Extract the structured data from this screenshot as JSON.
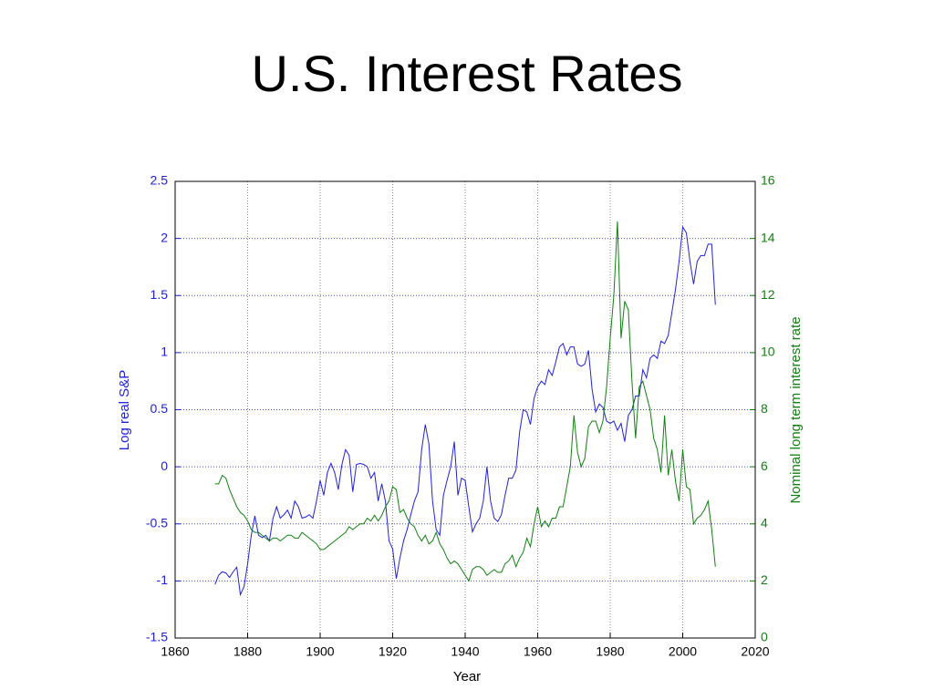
{
  "chart_data": {
    "type": "line",
    "title": "U.S. Interest Rates",
    "xlabel": "Year",
    "ylabel": "Log real S&P",
    "y2label": "Nominal long term interest rate",
    "x": [
      1871,
      1872,
      1873,
      1874,
      1875,
      1876,
      1877,
      1878,
      1879,
      1880,
      1881,
      1882,
      1883,
      1884,
      1885,
      1886,
      1887,
      1888,
      1889,
      1890,
      1891,
      1892,
      1893,
      1894,
      1895,
      1896,
      1897,
      1898,
      1899,
      1900,
      1901,
      1902,
      1903,
      1904,
      1905,
      1906,
      1907,
      1908,
      1909,
      1910,
      1911,
      1912,
      1913,
      1914,
      1915,
      1916,
      1917,
      1918,
      1919,
      1920,
      1921,
      1922,
      1923,
      1924,
      1925,
      1926,
      1927,
      1928,
      1929,
      1930,
      1931,
      1932,
      1933,
      1934,
      1935,
      1936,
      1937,
      1938,
      1939,
      1940,
      1941,
      1942,
      1943,
      1944,
      1945,
      1946,
      1947,
      1948,
      1949,
      1950,
      1951,
      1952,
      1953,
      1954,
      1955,
      1956,
      1957,
      1958,
      1959,
      1960,
      1961,
      1962,
      1963,
      1964,
      1965,
      1966,
      1967,
      1968,
      1969,
      1970,
      1971,
      1972,
      1973,
      1974,
      1975,
      1976,
      1977,
      1978,
      1979,
      1980,
      1981,
      1982,
      1983,
      1984,
      1985,
      1986,
      1987,
      1988,
      1989,
      1990,
      1991,
      1992,
      1993,
      1994,
      1995,
      1996,
      1997,
      1998,
      1999,
      2000,
      2001,
      2002,
      2003,
      2004,
      2005,
      2006,
      2007,
      2008,
      2009
    ],
    "series": [
      {
        "name": "Log real S&P",
        "color": "#2020e0",
        "axis": "y",
        "values": [
          -1.03,
          -0.95,
          -0.92,
          -0.93,
          -0.97,
          -0.92,
          -0.88,
          -1.12,
          -1.05,
          -0.85,
          -0.6,
          -0.43,
          -0.6,
          -0.62,
          -0.6,
          -0.65,
          -0.45,
          -0.35,
          -0.45,
          -0.42,
          -0.38,
          -0.45,
          -0.3,
          -0.35,
          -0.45,
          -0.44,
          -0.42,
          -0.45,
          -0.3,
          -0.12,
          -0.25,
          -0.05,
          0.03,
          -0.05,
          -0.2,
          0.02,
          0.15,
          0.1,
          -0.22,
          0.02,
          0.03,
          0.02,
          0.0,
          -0.1,
          -0.05,
          -0.3,
          -0.15,
          -0.3,
          -0.65,
          -0.72,
          -0.98,
          -0.8,
          -0.65,
          -0.55,
          -0.42,
          -0.3,
          -0.22,
          0.15,
          0.37,
          0.2,
          -0.3,
          -0.55,
          -0.6,
          -0.25,
          -0.12,
          0.0,
          0.22,
          -0.25,
          -0.1,
          -0.12,
          -0.35,
          -0.57,
          -0.5,
          -0.45,
          -0.3,
          0.0,
          -0.3,
          -0.45,
          -0.48,
          -0.42,
          -0.25,
          -0.1,
          -0.1,
          -0.03,
          0.3,
          0.5,
          0.48,
          0.37,
          0.6,
          0.7,
          0.75,
          0.72,
          0.85,
          0.8,
          0.92,
          1.05,
          1.08,
          0.98,
          1.05,
          1.05,
          0.9,
          0.88,
          0.9,
          1.02,
          0.68,
          0.48,
          0.55,
          0.52,
          0.4,
          0.38,
          0.4,
          0.32,
          0.38,
          0.22,
          0.45,
          0.5,
          0.62,
          0.62,
          0.85,
          0.78,
          0.95,
          0.98,
          0.95,
          1.1,
          1.08,
          1.15,
          1.35,
          1.55,
          1.8,
          2.1,
          2.05,
          1.8,
          1.6,
          1.8,
          1.85,
          1.85,
          1.95,
          1.95,
          1.42
        ]
      },
      {
        "name": "Nominal long term interest rate",
        "color": "#108010",
        "axis": "y2",
        "values": [
          5.4,
          5.4,
          5.7,
          5.6,
          5.2,
          4.9,
          4.6,
          4.4,
          4.3,
          4.1,
          3.8,
          3.7,
          3.7,
          3.6,
          3.5,
          3.4,
          3.5,
          3.5,
          3.4,
          3.5,
          3.6,
          3.6,
          3.5,
          3.5,
          3.7,
          3.6,
          3.5,
          3.4,
          3.3,
          3.1,
          3.1,
          3.2,
          3.3,
          3.4,
          3.5,
          3.6,
          3.7,
          3.9,
          3.8,
          3.9,
          4.0,
          4.0,
          4.2,
          4.1,
          4.3,
          4.1,
          4.3,
          4.6,
          4.8,
          5.3,
          5.2,
          4.4,
          4.5,
          4.2,
          4.0,
          3.9,
          3.6,
          3.4,
          3.6,
          3.3,
          3.4,
          3.7,
          3.3,
          3.1,
          2.8,
          2.6,
          2.7,
          2.6,
          2.4,
          2.2,
          2.0,
          2.4,
          2.5,
          2.5,
          2.4,
          2.2,
          2.3,
          2.4,
          2.3,
          2.3,
          2.6,
          2.7,
          2.9,
          2.5,
          2.8,
          3.0,
          3.5,
          3.2,
          4.0,
          4.6,
          3.9,
          4.1,
          3.9,
          4.2,
          4.2,
          4.6,
          4.6,
          5.3,
          6.0,
          7.8,
          6.5,
          6.0,
          6.3,
          7.4,
          7.6,
          7.6,
          7.2,
          7.6,
          8.8,
          10.5,
          12.0,
          14.6,
          10.5,
          11.8,
          11.5,
          9.0,
          7.0,
          8.8,
          9.0,
          8.5,
          8.0,
          7.0,
          6.6,
          5.8,
          7.8,
          5.7,
          6.6,
          5.5,
          4.8,
          6.6,
          5.3,
          5.2,
          4.0,
          4.2,
          4.3,
          4.5,
          4.8,
          3.8,
          2.5
        ]
      }
    ],
    "xlim": [
      1860,
      2020
    ],
    "xticks": [
      1860,
      1880,
      1900,
      1920,
      1940,
      1960,
      1980,
      2000,
      2020
    ],
    "ylim": [
      -1.5,
      2.5
    ],
    "yticks": [
      -1.5,
      -1,
      -0.5,
      0,
      0.5,
      1,
      1.5,
      2,
      2.5
    ],
    "y2lim": [
      0,
      16
    ],
    "y2ticks": [
      0,
      2,
      4,
      6,
      8,
      10,
      12,
      14,
      16
    ],
    "grid": true
  }
}
